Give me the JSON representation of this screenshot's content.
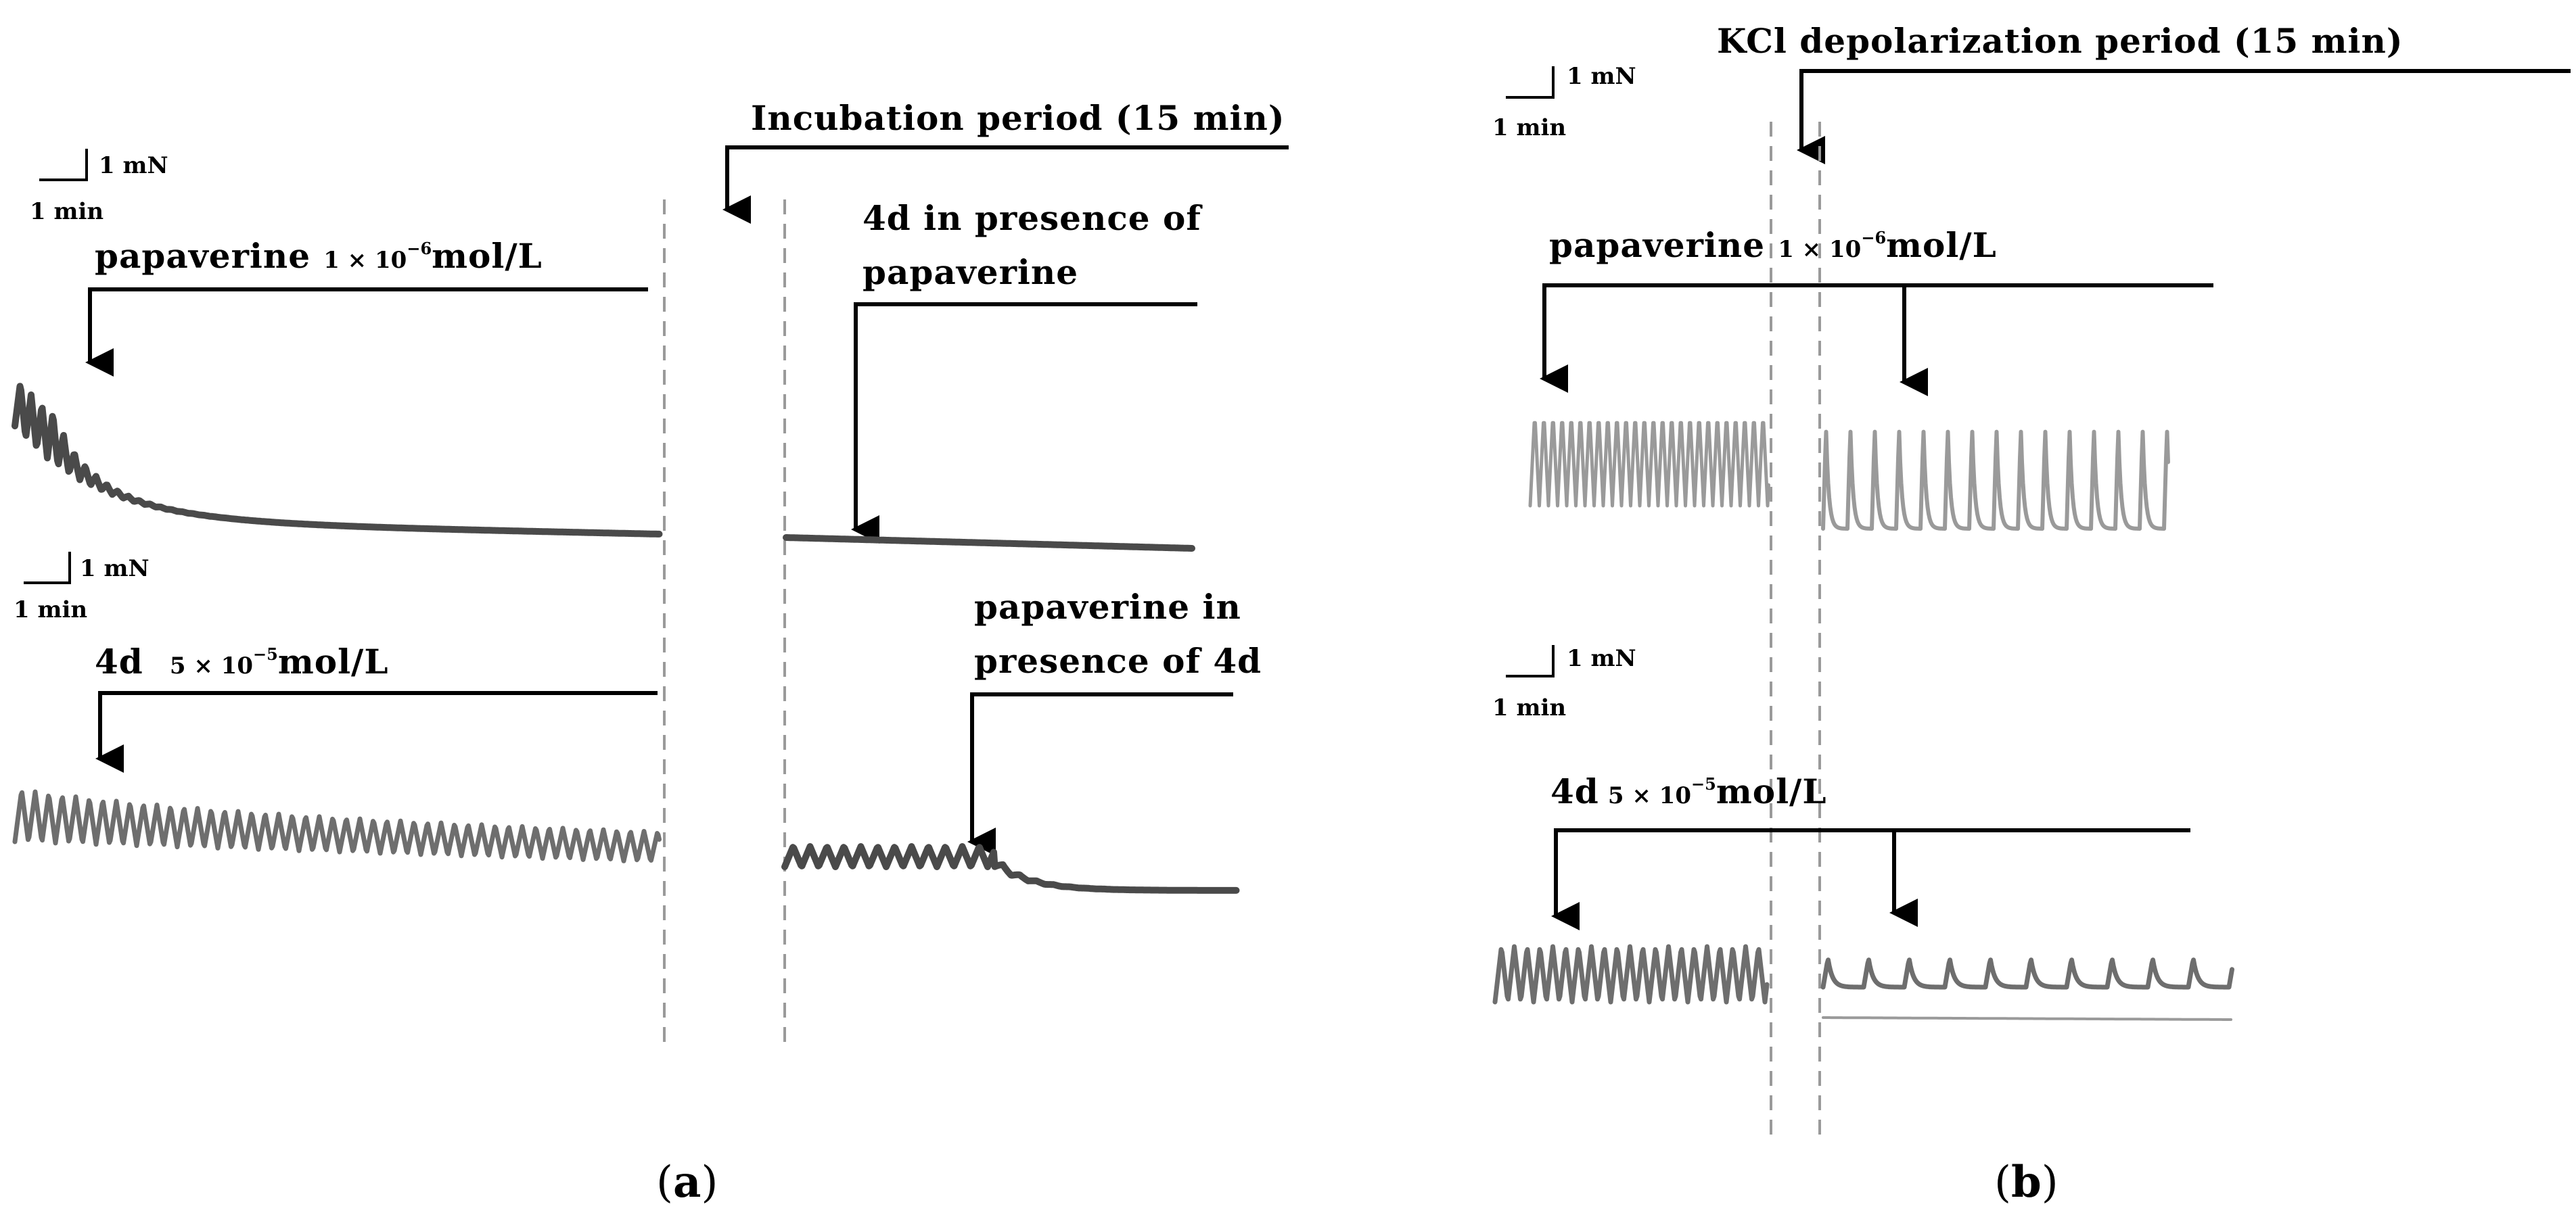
{
  "panel_a": {
    "top_scale": {
      "force": "1 mN",
      "time": "1 min"
    },
    "bottom_scale": {
      "force": "1 mN",
      "time": "1 min"
    },
    "incubation_label": "Incubation period (15 min)",
    "papaverine_label": {
      "name": "papaverine",
      "conc_main": "1 × 10",
      "conc_exp": "−6",
      "unit": "mol/L"
    },
    "compound_label": {
      "name": "4d",
      "conc_main": "5 × 10",
      "conc_exp": "−5",
      "unit": "mol/L"
    },
    "combo_top": [
      "4d in presence of",
      "papaverine"
    ],
    "combo_bottom": [
      "papaverine in",
      "presence of 4d"
    ],
    "caption": {
      "open": "(",
      "letter": "a",
      "close": ")"
    }
  },
  "panel_b": {
    "top_scale": {
      "force": "1 mN",
      "time": "1 min"
    },
    "bottom_scale": {
      "force": "1 mN",
      "time": "1 min"
    },
    "kcl_label": "KCl depolarization period (15 min)",
    "papaverine_label": {
      "name": "papaverine",
      "conc_main": "1 × 10",
      "conc_exp": "−6",
      "unit": "mol/L"
    },
    "compound_label": {
      "name": "4d",
      "conc_main": "5 × 10",
      "conc_exp": "−5",
      "unit": "mol/L"
    },
    "caption": {
      "open": "(",
      "letter": "b",
      "close": ")"
    }
  },
  "colors": {
    "trace_dark": "#4a4a4a",
    "trace_mid": "#6e6e6e",
    "trace_light": "#9a9a9a",
    "divider": "#9a9a9a"
  },
  "trace_models": [
    {
      "id": "a1-pap-control",
      "cycles": 7,
      "pre_amplitude": 1.0,
      "final_amplitude": 0.0,
      "decay": "fast"
    },
    {
      "id": "a1-4d-after-pap",
      "cycles": 0,
      "pre_amplitude": 0.0,
      "final_amplitude": 0.0,
      "decay": "none"
    },
    {
      "id": "a2-4d-control",
      "cycles": 48,
      "pre_amplitude": 1.0,
      "final_amplitude": 0.55,
      "decay": "slow"
    },
    {
      "id": "a2-pap-after-4d",
      "cycles": 12,
      "pre_amplitude": 0.25,
      "final_amplitude": 0.0,
      "decay": "fast"
    },
    {
      "id": "b1-pap-pre-kcl",
      "cycles": 26,
      "pre_amplitude": 1.0,
      "final_amplitude": 1.0,
      "decay": "none"
    },
    {
      "id": "b1-pap-post-kcl",
      "cycles": 14,
      "pre_amplitude": 1.0,
      "final_amplitude": 1.0,
      "decay": "none"
    },
    {
      "id": "b2-4d-pre-kcl",
      "cycles": 20,
      "pre_amplitude": 1.0,
      "final_amplitude": 1.0,
      "decay": "none"
    },
    {
      "id": "b2-4d-post-kcl",
      "cycles": 10,
      "pre_amplitude": 0.3,
      "final_amplitude": 0.3,
      "decay": "none"
    }
  ]
}
